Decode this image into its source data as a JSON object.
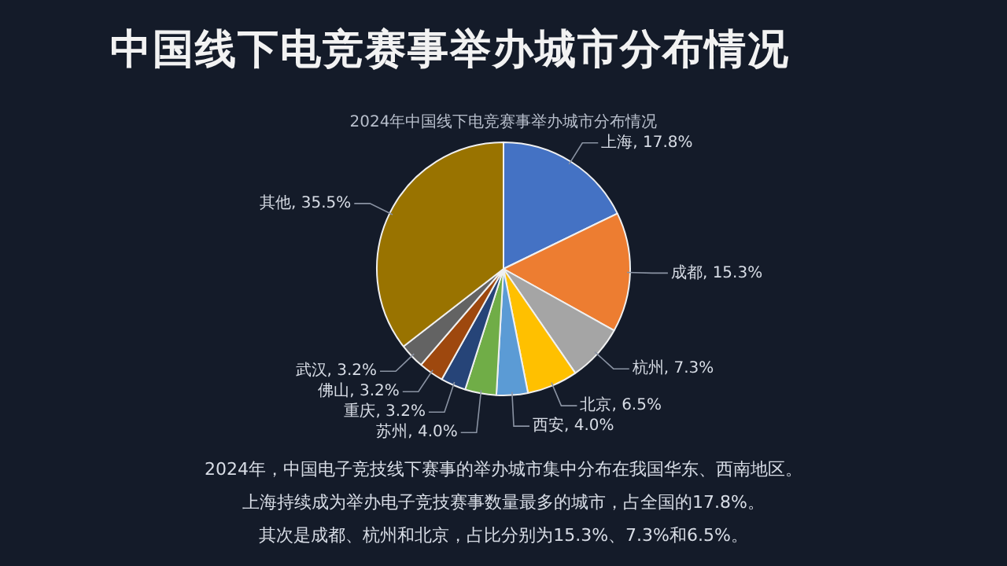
{
  "chart_data": {
    "type": "pie",
    "title": "中国线下电竞赛事举办城市分布情况",
    "subtitle": "2024年中国线下电竞赛事举办城市分布情况",
    "categories": [
      "上海",
      "成都",
      "杭州",
      "北京",
      "西安",
      "苏州",
      "重庆",
      "佛山",
      "武汉",
      "其他"
    ],
    "values": [
      17.8,
      15.3,
      7.3,
      6.5,
      4.0,
      4.0,
      3.2,
      3.2,
      3.2,
      35.5
    ],
    "colors": [
      "#4472c4",
      "#ed7d31",
      "#a5a5a5",
      "#ffc000",
      "#5b9bd5",
      "#70ad47",
      "#264478",
      "#9e480e",
      "#636363",
      "#997300"
    ],
    "value_labels": [
      "17.8%",
      "15.3%",
      "7.3%",
      "6.5%",
      "4.0%",
      "4.0%",
      "3.2%",
      "3.2%",
      "3.2%",
      "35.5%"
    ],
    "legend": false,
    "annotations": [
      "2024年，中国电子竞技线下赛事的举办城市集中分布在我国华东、西南地区。",
      "上海持续成为举办电子竞技赛事数量最多的城市，占全国的17.8%。",
      "其次是成都、杭州和北京，占比分别为15.3%、7.3%和6.5%。"
    ]
  }
}
